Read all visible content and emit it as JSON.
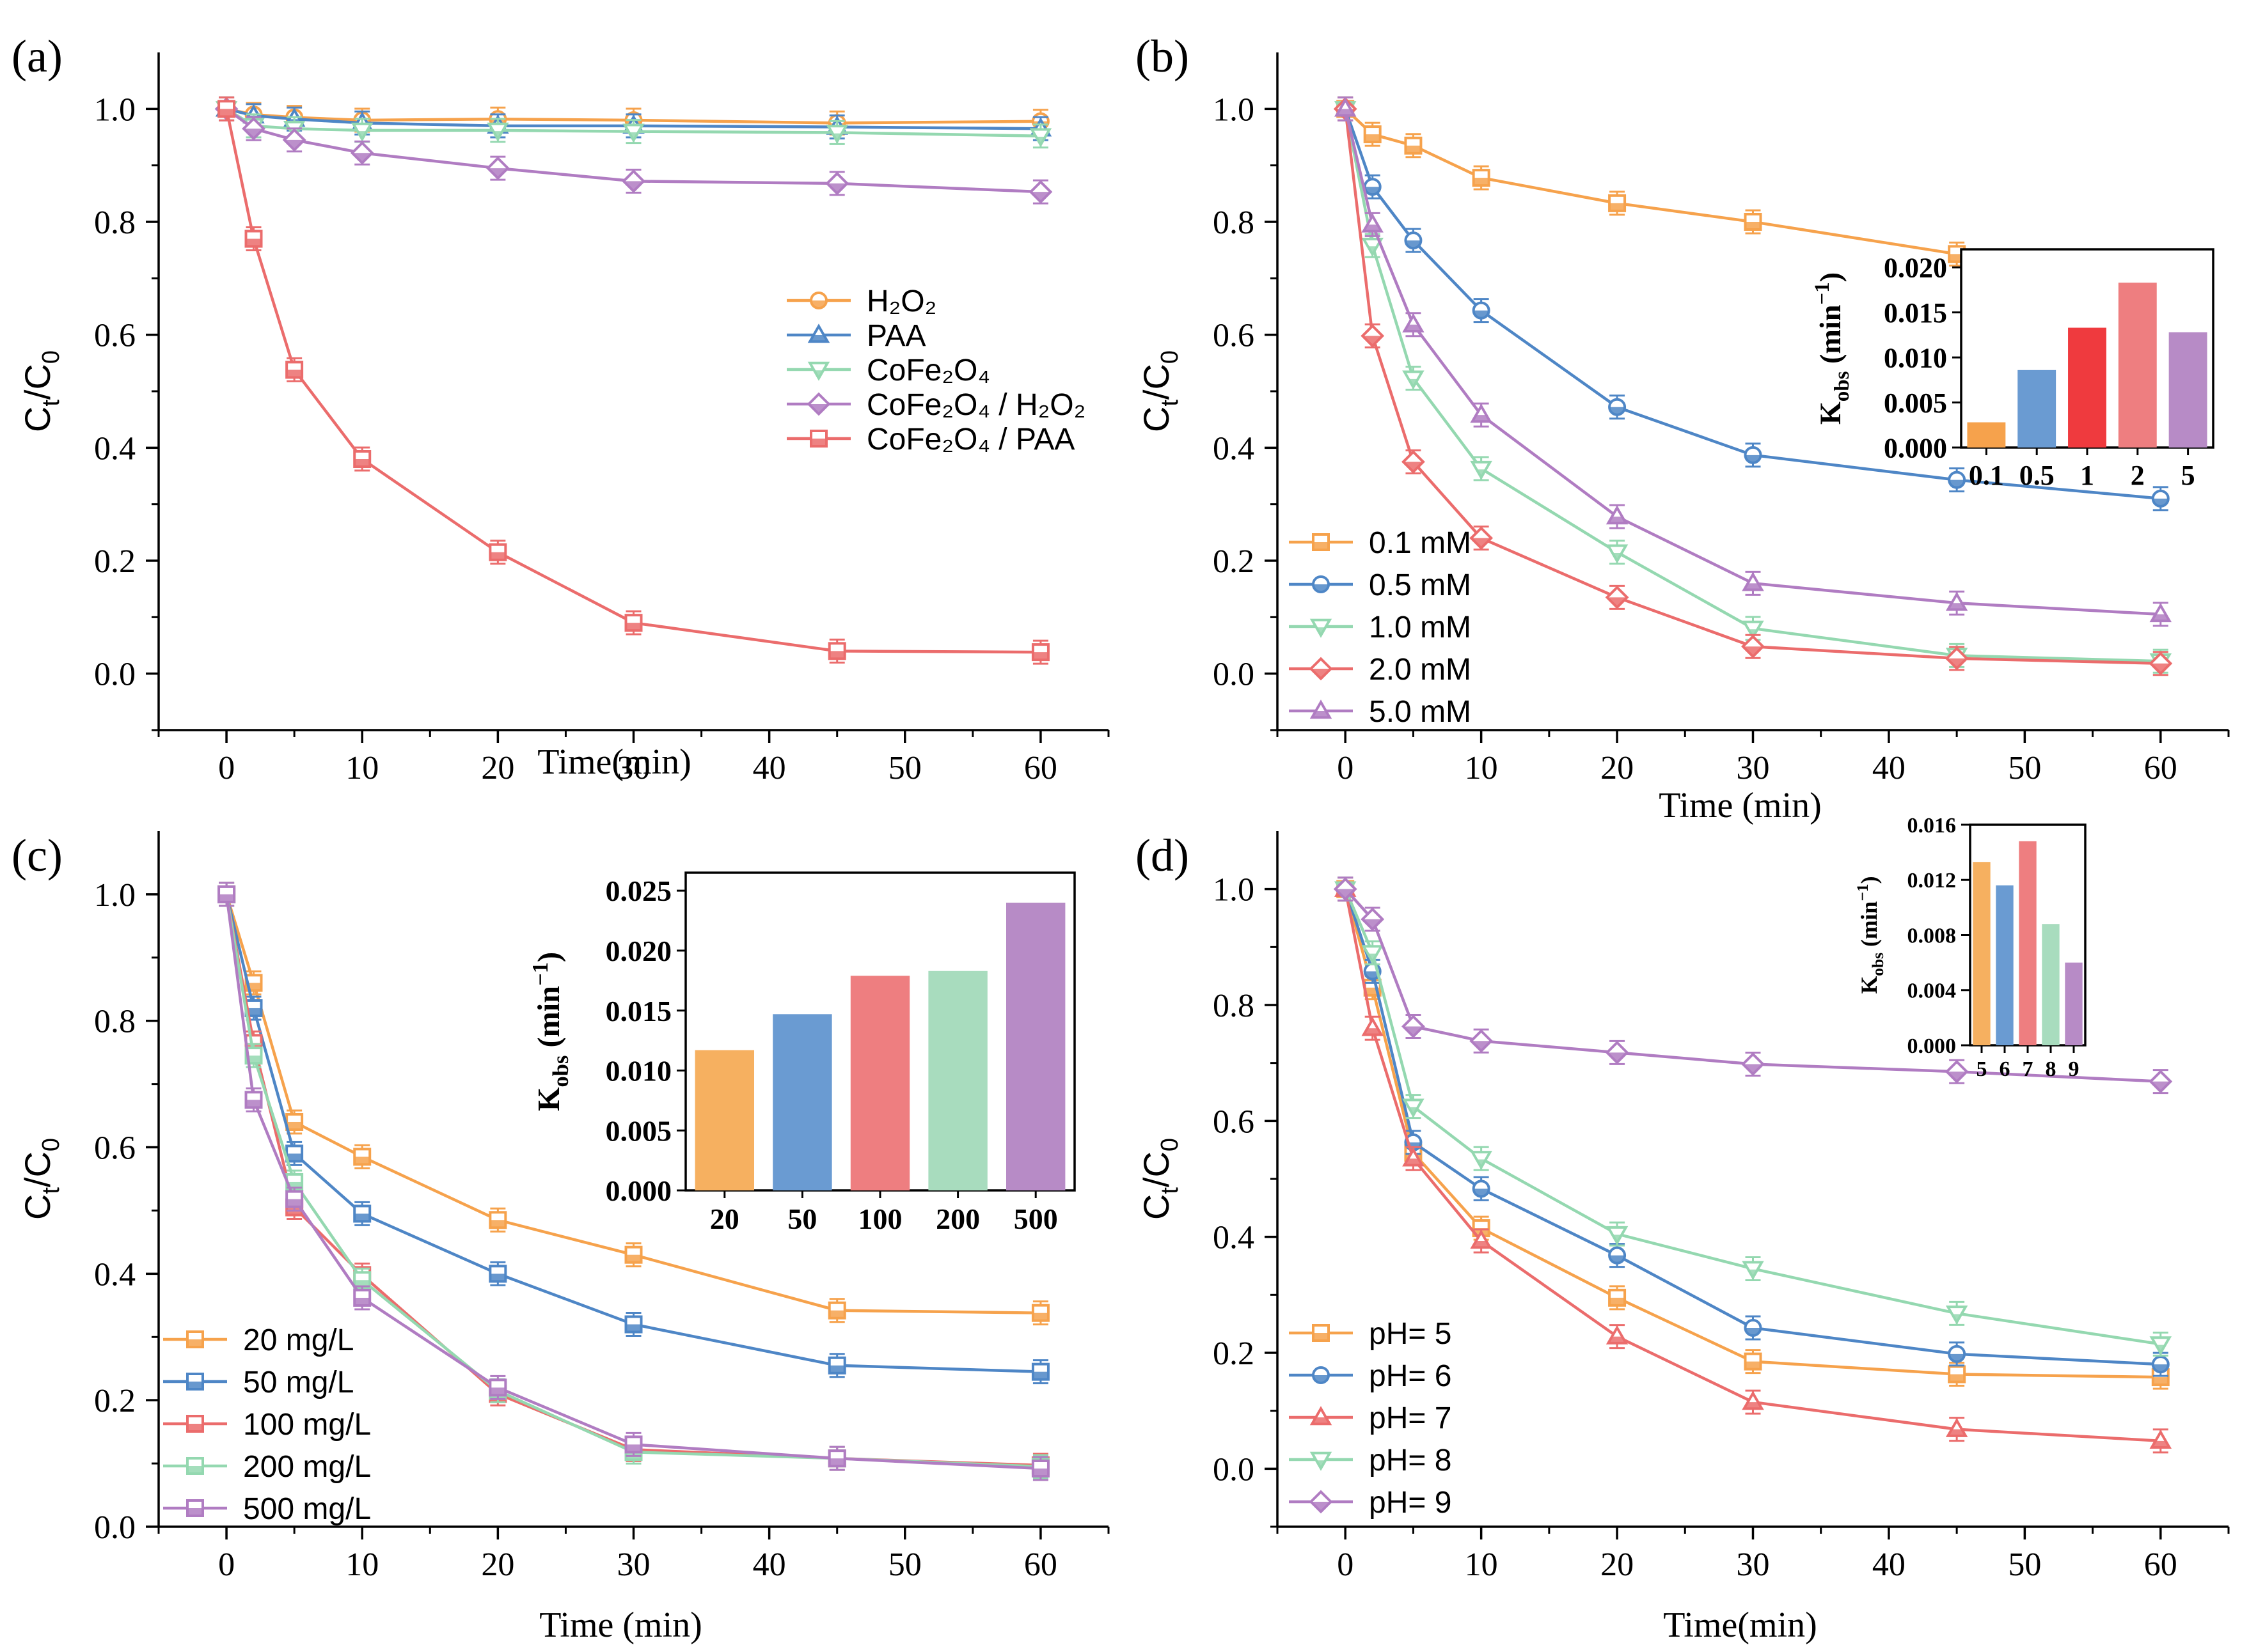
{
  "figure": {
    "colors": {
      "orange": "#F6A24C",
      "blue": "#4E86C6",
      "red": "#EB6C6C",
      "green": "#94D8B0",
      "purple": "#B07CC2",
      "bar_orange": "#F6B060",
      "bar_blue": "#6A9BD2",
      "bar_red": "#EE7E80",
      "bar_red_strong": "#EF3A3E",
      "bar_green": "#A8DCBE",
      "bar_purple": "#B78BC6"
    }
  },
  "chart_data": [
    {
      "type": "line",
      "panel_label": "(a)",
      "xlabel": "Time(min)",
      "ylabel_main": "C",
      "ylabel_sub1": "t",
      "ylabel_sub2": "0",
      "xlim": [
        -5,
        65
      ],
      "ylim": [
        -0.1,
        1.1
      ],
      "xticks": [
        0,
        10,
        20,
        30,
        40,
        50,
        60
      ],
      "yticks": [
        0.0,
        0.2,
        0.4,
        0.6,
        0.8,
        1.0
      ],
      "x": [
        0,
        2,
        5,
        10,
        20,
        30,
        45,
        60
      ],
      "legend_position": "center-right",
      "series": [
        {
          "name": "H2O2",
          "label_parts": [
            "H",
            "2",
            "O",
            "2"
          ],
          "label": "H₂O₂",
          "color": "#F6A24C",
          "marker": "circle",
          "values": [
            1.0,
            0.99,
            0.985,
            0.98,
            0.982,
            0.98,
            0.975,
            0.978
          ]
        },
        {
          "name": "PAA",
          "label": "PAA",
          "color": "#4E86C6",
          "marker": "triangle-up",
          "values": [
            1.0,
            0.988,
            0.982,
            0.975,
            0.97,
            0.97,
            0.968,
            0.965
          ]
        },
        {
          "name": "CoFe2O4",
          "label": "CoFe₂O₄",
          "color": "#94D8B0",
          "marker": "triangle-down",
          "values": [
            1.0,
            0.97,
            0.965,
            0.962,
            0.962,
            0.96,
            0.958,
            0.952
          ]
        },
        {
          "name": "CoFe2O4 / H2O2",
          "label": "CoFe₂O₄ / H₂O₂",
          "color": "#B07CC2",
          "marker": "diamond",
          "values": [
            1.0,
            0.965,
            0.945,
            0.922,
            0.895,
            0.872,
            0.868,
            0.853
          ]
        },
        {
          "name": "CoFe2O4 / PAA",
          "label": "CoFe₂O₄ / PAA",
          "color": "#EB6C6C",
          "marker": "square",
          "values": [
            1.0,
            0.77,
            0.538,
            0.38,
            0.215,
            0.09,
            0.04,
            0.038
          ]
        }
      ]
    },
    {
      "type": "line",
      "panel_label": "(b)",
      "xlabel": "Time (min)",
      "ylabel_main": "C",
      "ylabel_sub1": "t",
      "ylabel_sub2": "0",
      "xlim": [
        -5,
        65
      ],
      "ylim": [
        -0.1,
        1.1
      ],
      "xticks": [
        0,
        10,
        20,
        30,
        40,
        50,
        60
      ],
      "yticks": [
        0.0,
        0.2,
        0.4,
        0.6,
        0.8,
        1.0
      ],
      "x": [
        0,
        2,
        5,
        10,
        20,
        30,
        45,
        60
      ],
      "legend_position": "bottom-left",
      "series": [
        {
          "name": "0.1 mM",
          "label": "0.1 mM",
          "color": "#F6A24C",
          "marker": "square",
          "values": [
            1.0,
            0.955,
            0.935,
            0.878,
            0.833,
            0.8,
            0.743,
            0.73
          ]
        },
        {
          "name": "0.5 mM",
          "label": "0.5 mM",
          "color": "#4E86C6",
          "marker": "circle",
          "values": [
            1.0,
            0.862,
            0.767,
            0.643,
            0.472,
            0.387,
            0.343,
            0.31
          ]
        },
        {
          "name": "1.0 mM",
          "label": "1.0 mM",
          "color": "#94D8B0",
          "marker": "triangle-down",
          "values": [
            1.0,
            0.758,
            0.523,
            0.363,
            0.215,
            0.08,
            0.032,
            0.022
          ]
        },
        {
          "name": "2.0 mM",
          "label": "2.0 mM",
          "color": "#EB6C6C",
          "marker": "diamond",
          "values": [
            1.0,
            0.598,
            0.375,
            0.24,
            0.135,
            0.048,
            0.027,
            0.018
          ]
        },
        {
          "name": "5.0 mM",
          "label": "5.0 mM",
          "color": "#B07CC2",
          "marker": "triangle-up",
          "values": [
            1.0,
            0.795,
            0.618,
            0.458,
            0.278,
            0.16,
            0.125,
            0.105
          ]
        }
      ],
      "inset": {
        "type": "bar",
        "ylabel_main": "K",
        "ylabel_sub": "obs",
        "ylabel_unit": "(min",
        "ylabel_exp": "−1",
        "ylabel_close": ")",
        "categories": [
          "0.1",
          "0.5",
          "1",
          "2",
          "5"
        ],
        "values": [
          0.0028,
          0.0086,
          0.0133,
          0.0183,
          0.0128
        ],
        "colors": [
          "#F6A24C",
          "#6A9BD2",
          "#EF3A3E",
          "#EE7E80",
          "#B78BC6"
        ],
        "ylim": [
          0,
          0.022
        ],
        "yticks": [
          "0.000",
          "0.005",
          "0.010",
          "0.015",
          "0.020"
        ]
      }
    },
    {
      "type": "line",
      "panel_label": "(c)",
      "xlabel": "Time (min)",
      "ylabel_main": "C",
      "ylabel_sub1": "t",
      "ylabel_sub2": "0",
      "xlim": [
        -5,
        65
      ],
      "ylim": [
        0.0,
        1.1
      ],
      "xticks": [
        0,
        10,
        20,
        30,
        40,
        50,
        60
      ],
      "yticks": [
        0.0,
        0.2,
        0.4,
        0.6,
        0.8,
        1.0
      ],
      "x": [
        0,
        2,
        5,
        10,
        20,
        30,
        45,
        60
      ],
      "legend_position": "bottom-left",
      "series": [
        {
          "name": "20 mg/L",
          "label": "20 mg/L",
          "color": "#F6A24C",
          "marker": "square",
          "values": [
            1.0,
            0.86,
            0.64,
            0.585,
            0.485,
            0.43,
            0.342,
            0.338
          ]
        },
        {
          "name": "50 mg/L",
          "label": "50 mg/L",
          "color": "#4E86C6",
          "marker": "square",
          "values": [
            1.0,
            0.82,
            0.59,
            0.495,
            0.4,
            0.32,
            0.255,
            0.245
          ]
        },
        {
          "name": "100 mg/L",
          "label": "100 mg/L",
          "color": "#EB6C6C",
          "marker": "square",
          "values": [
            1.0,
            0.765,
            0.505,
            0.398,
            0.21,
            0.122,
            0.108,
            0.097
          ]
        },
        {
          "name": "200 mg/L",
          "label": "200 mg/L",
          "color": "#94D8B0",
          "marker": "square",
          "values": [
            1.0,
            0.745,
            0.545,
            0.39,
            0.215,
            0.118,
            0.108,
            0.095
          ]
        },
        {
          "name": "500 mg/L",
          "label": "500 mg/L",
          "color": "#B07CC2",
          "marker": "square",
          "values": [
            1.0,
            0.675,
            0.518,
            0.362,
            0.22,
            0.13,
            0.108,
            0.092
          ]
        }
      ],
      "inset": {
        "type": "bar",
        "ylabel_main": "K",
        "ylabel_sub": "obs",
        "ylabel_unit": "(min",
        "ylabel_exp": "−1",
        "ylabel_close": ")",
        "categories": [
          "20",
          "50",
          "100",
          "200",
          "500"
        ],
        "values": [
          0.0117,
          0.0147,
          0.0179,
          0.0183,
          0.024
        ],
        "colors": [
          "#F6B060",
          "#6A9BD2",
          "#EE7E80",
          "#A8DCBE",
          "#B78BC6"
        ],
        "ylim": [
          0,
          0.0265
        ],
        "yticks": [
          "0.000",
          "0.005",
          "0.010",
          "0.015",
          "0.020",
          "0.025"
        ]
      }
    },
    {
      "type": "line",
      "panel_label": "(d)",
      "xlabel": "Time(min)",
      "ylabel_main": "C",
      "ylabel_sub1": "t",
      "ylabel_sub2": "0",
      "xlim": [
        -5,
        65
      ],
      "ylim": [
        -0.1,
        1.1
      ],
      "xticks": [
        0,
        10,
        20,
        30,
        40,
        50,
        60
      ],
      "yticks": [
        0.0,
        0.2,
        0.4,
        0.6,
        0.8,
        1.0
      ],
      "x": [
        0,
        2,
        5,
        10,
        20,
        30,
        45,
        60
      ],
      "legend_position": "bottom-left",
      "series": [
        {
          "name": "pH= 5",
          "label": "pH= 5",
          "color": "#F6A24C",
          "marker": "square",
          "values": [
            1.0,
            0.83,
            0.545,
            0.415,
            0.295,
            0.185,
            0.163,
            0.158
          ]
        },
        {
          "name": "pH= 6",
          "label": "pH= 6",
          "color": "#4E86C6",
          "marker": "circle",
          "values": [
            1.0,
            0.858,
            0.563,
            0.483,
            0.368,
            0.243,
            0.198,
            0.18
          ]
        },
        {
          "name": "pH= 7",
          "label": "pH= 7",
          "color": "#EB6C6C",
          "marker": "triangle-up",
          "values": [
            1.0,
            0.76,
            0.535,
            0.393,
            0.228,
            0.115,
            0.068,
            0.048
          ]
        },
        {
          "name": "pH= 8",
          "label": "pH= 8",
          "color": "#94D8B0",
          "marker": "triangle-down",
          "values": [
            1.0,
            0.89,
            0.625,
            0.535,
            0.405,
            0.345,
            0.268,
            0.215
          ]
        },
        {
          "name": "pH= 9",
          "label": "pH= 9",
          "color": "#B07CC2",
          "marker": "diamond",
          "values": [
            1.0,
            0.948,
            0.763,
            0.738,
            0.718,
            0.698,
            0.685,
            0.668
          ]
        }
      ],
      "inset": {
        "type": "bar",
        "ylabel_main": "K",
        "ylabel_sub": "obs",
        "ylabel_unit": "(min",
        "ylabel_exp": "−1",
        "ylabel_close": ")",
        "categories": [
          "5",
          "6",
          "7",
          "8",
          "9"
        ],
        "values": [
          0.0133,
          0.0116,
          0.0148,
          0.0088,
          0.006
        ],
        "colors": [
          "#F6B060",
          "#6A9BD2",
          "#EE7E80",
          "#A8DCBE",
          "#B78BC6"
        ],
        "ylim": [
          0,
          0.016
        ],
        "yticks": [
          "0.000",
          "0.004",
          "0.008",
          "0.012",
          "0.016"
        ]
      }
    }
  ]
}
